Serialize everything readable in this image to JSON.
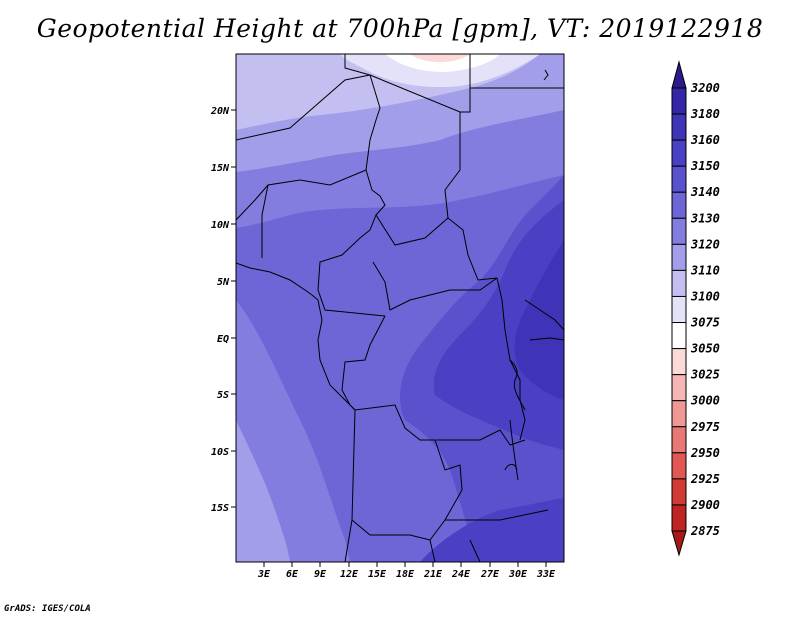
{
  "title": "Geopotential Height at 700hPa [gpm], VT: 2019122918",
  "credit": "GrADS: IGES/COLA",
  "map": {
    "lat_labels": [
      "20N",
      "15N",
      "10N",
      "5N",
      "EQ",
      "5S",
      "10S",
      "15S"
    ],
    "lon_labels": [
      "3E",
      "6E",
      "9E",
      "12E",
      "15E",
      "18E",
      "21E",
      "24E",
      "27E",
      "30E",
      "33E"
    ],
    "lat_range": [
      -20,
      25
    ],
    "lon_range": [
      0,
      35
    ]
  },
  "colorbar": {
    "levels": [
      "3200",
      "3180",
      "3160",
      "3150",
      "3140",
      "3130",
      "3120",
      "3110",
      "3100",
      "3075",
      "3050",
      "3025",
      "3000",
      "2975",
      "2950",
      "2925",
      "2900",
      "2875"
    ],
    "colors": [
      "#2a1a8a",
      "#3426a6",
      "#3f33b8",
      "#4a40c4",
      "#5a52cc",
      "#6d66d6",
      "#837de0",
      "#a29ee9",
      "#c3c0f1",
      "#e4e2f8",
      "#ffffff",
      "#fcdada",
      "#f5b7b5",
      "#ef9894",
      "#e87874",
      "#df5854",
      "#d23a36",
      "#bf2422",
      "#a81816"
    ]
  }
}
